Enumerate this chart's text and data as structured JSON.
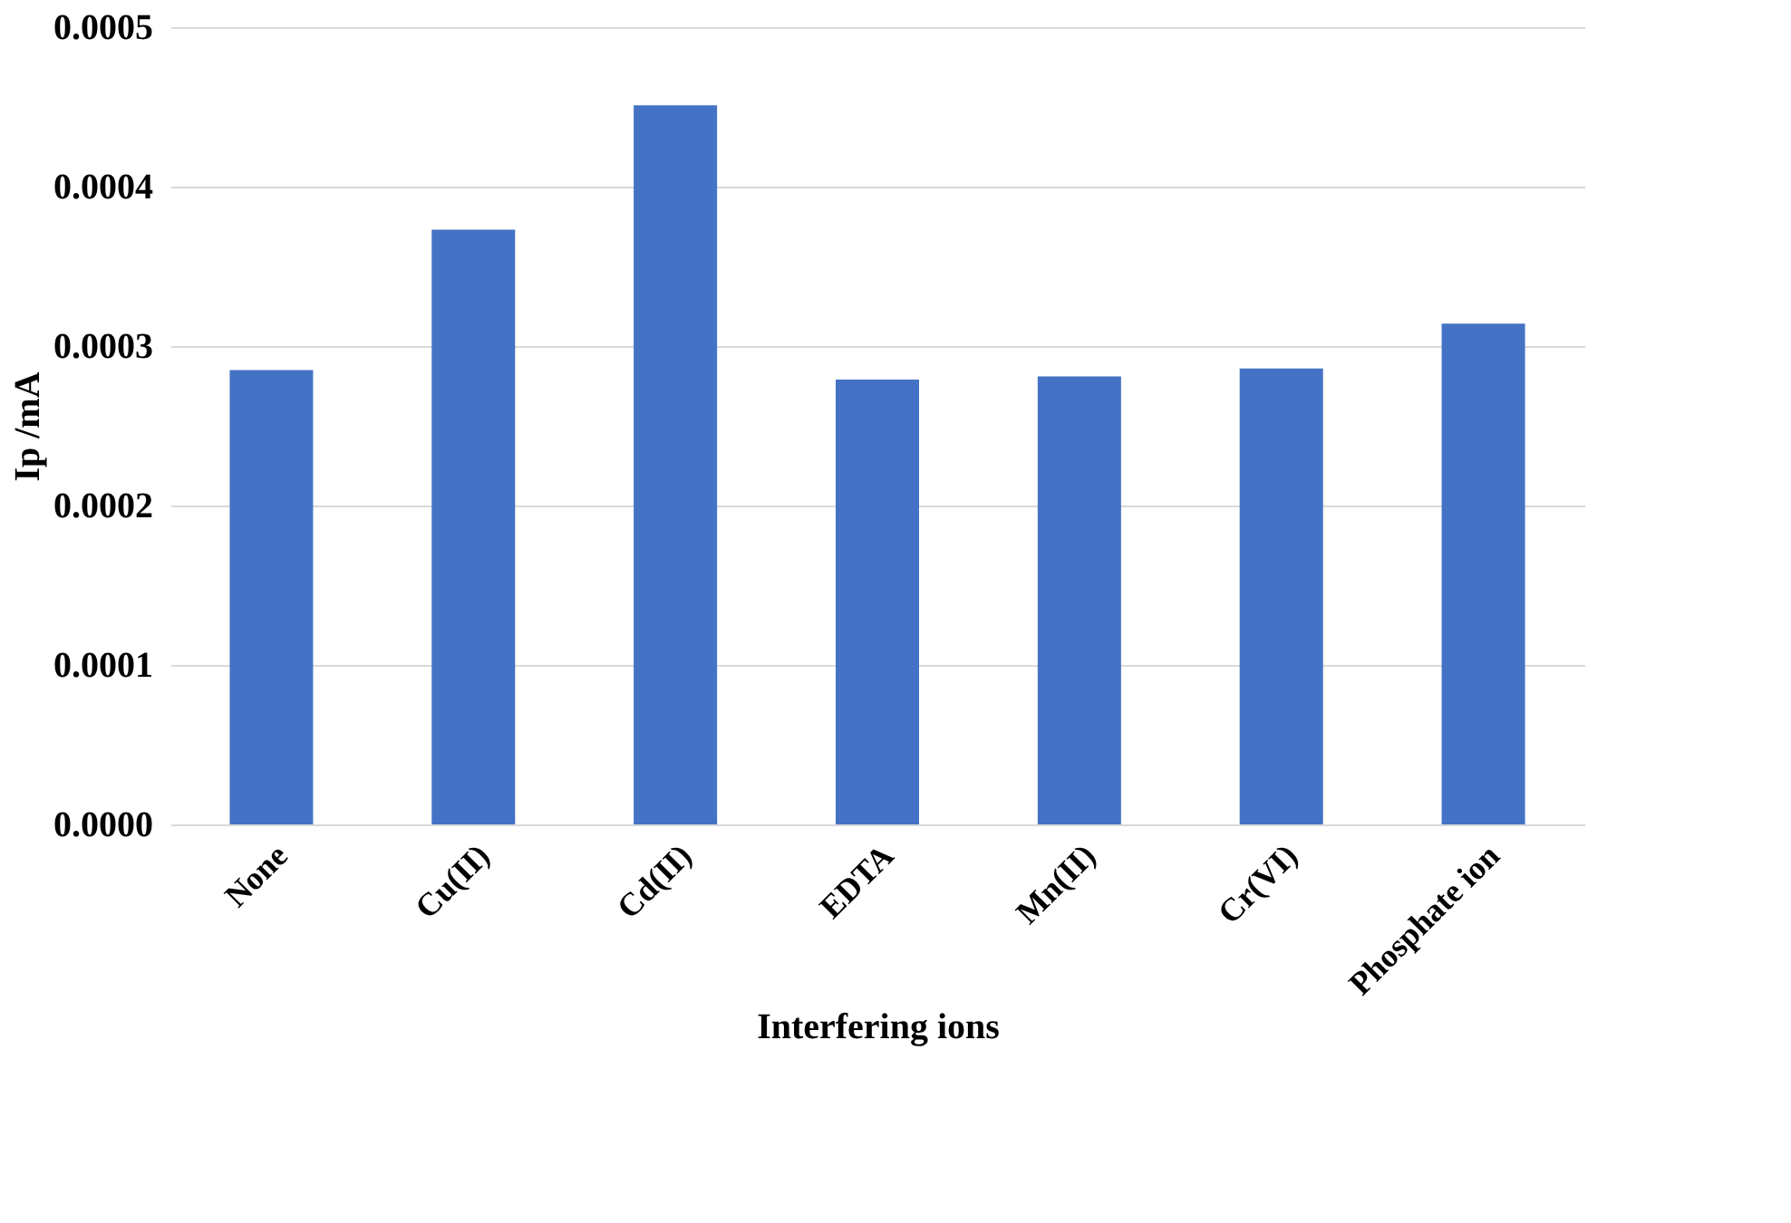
{
  "chart_data": {
    "type": "bar",
    "xlabel": "Interfering ions",
    "ylabel": "Ip /mA",
    "categories": [
      "None",
      "Cu(II)",
      "Cd(II)",
      "EDTA",
      "Mn(II)",
      "Cr(VI)",
      "Phosphate ion"
    ],
    "values": [
      0.000285,
      0.000373,
      0.000451,
      0.000279,
      0.000281,
      0.000286,
      0.000314
    ],
    "color": "#4472c4",
    "ylim": [
      0,
      0.0005
    ],
    "yticks": [
      {
        "value": 0,
        "label": "0.0000"
      },
      {
        "value": 0.0001,
        "label": "0.0001"
      },
      {
        "value": 0.0002,
        "label": "0.0002"
      },
      {
        "value": 0.0003,
        "label": "0.0003"
      },
      {
        "value": 0.0004,
        "label": "0.0004"
      },
      {
        "value": 0.0005,
        "label": "0.0005"
      }
    ],
    "grid": "y"
  }
}
